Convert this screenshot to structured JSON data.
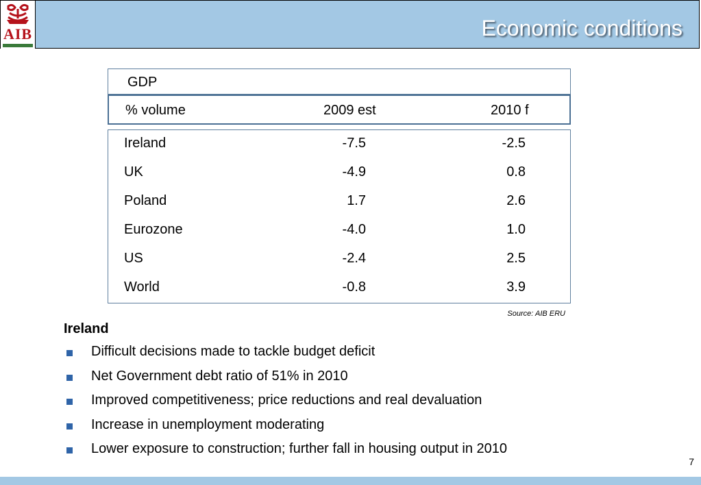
{
  "header": {
    "logo_text": "AIB",
    "title": "Economic conditions"
  },
  "table": {
    "caption": "GDP",
    "columns": [
      "% volume",
      "2009 est",
      "2010 f"
    ],
    "rows": [
      [
        "Ireland",
        "-7.5",
        "-2.5"
      ],
      [
        "UK",
        "-4.9",
        "0.8"
      ],
      [
        "Poland",
        "1.7",
        "2.6"
      ],
      [
        "Eurozone",
        "-4.0",
        "1.0"
      ],
      [
        "US",
        "-2.4",
        "2.5"
      ],
      [
        "World",
        "-0.8",
        "3.9"
      ]
    ],
    "source": "Source: AIB ERU"
  },
  "section": {
    "heading": "Ireland",
    "bullets": [
      "Difficult decisions made to tackle budget deficit",
      "Net Government debt ratio of 51% in 2010",
      "Improved competitiveness; price reductions and real devaluation",
      "Increase in unemployment moderating",
      "Lower exposure to construction; further fall in housing output in 2010"
    ]
  },
  "page_number": "7",
  "colors": {
    "header_bg": "#a3c8e4",
    "logo_red": "#b5121b",
    "bullet_blue": "#2f64a8",
    "table_border": "#4a6f93"
  }
}
